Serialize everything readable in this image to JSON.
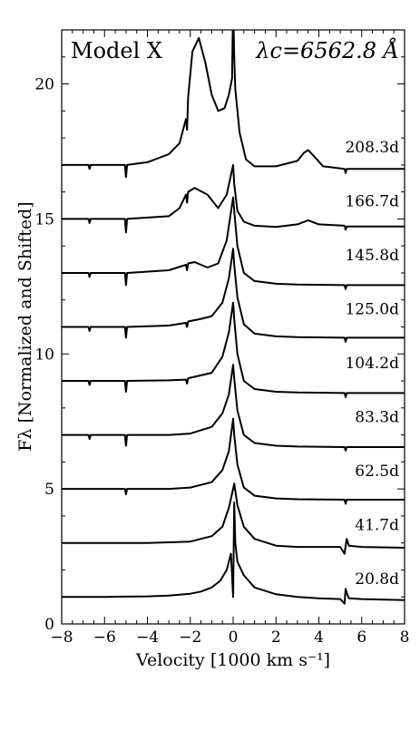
{
  "chart_data": {
    "type": "line",
    "title": "",
    "model_label": "Model X",
    "wavelength_label": "λc=6562.8 Å",
    "xlabel": "Velocity [1000 km s⁻¹]",
    "ylabel": "Fλ [Normalized and Shifted]",
    "xlim": [
      -8,
      8
    ],
    "ylim": [
      0,
      22
    ],
    "x_ticks": [
      -8,
      -6,
      -4,
      -2,
      0,
      2,
      4,
      6,
      8
    ],
    "x_tick_labels": [
      "−8",
      "−6",
      "−4",
      "−2",
      "0",
      "2",
      "4",
      "6",
      "8"
    ],
    "y_ticks": [
      0,
      5,
      10,
      15,
      20
    ],
    "y_tick_labels": [
      "0",
      "5",
      "10",
      "15",
      "20"
    ],
    "grid": false,
    "legend": "none",
    "line_color": "#000000",
    "series": [
      {
        "name": "20.8d",
        "offset": 1,
        "x": [
          -8,
          -6,
          -4,
          -3,
          -2,
          -1.5,
          -1,
          -0.6,
          -0.3,
          -0.1,
          0,
          0.05,
          0.1,
          0.2,
          0.5,
          1,
          2,
          3,
          4,
          5,
          5.2,
          5.25,
          5.3,
          5.4,
          6,
          8
        ],
        "y": [
          1,
          1,
          1.02,
          1.05,
          1.12,
          1.2,
          1.35,
          1.6,
          2.0,
          2.6,
          1.0,
          4.5,
          3.0,
          2.3,
          1.8,
          1.35,
          1.1,
          1.0,
          0.95,
          0.92,
          0.75,
          1.3,
          1.15,
          0.95,
          0.92,
          0.88
        ]
      },
      {
        "name": "41.7d",
        "offset": 3,
        "x": [
          -8,
          -6,
          -4,
          -2,
          -1,
          -0.5,
          -0.2,
          0,
          0.05,
          0.2,
          0.5,
          1,
          2,
          3,
          5,
          5.2,
          5.3,
          5.4,
          6,
          8
        ],
        "y": [
          3,
          3,
          3,
          3.05,
          3.25,
          3.6,
          4.3,
          5.0,
          5.2,
          4.4,
          3.6,
          3.15,
          2.9,
          2.85,
          2.85,
          2.6,
          3.15,
          2.9,
          2.85,
          2.82
        ]
      },
      {
        "name": "62.5d",
        "offset": 5,
        "x": [
          -8,
          -5.05,
          -5,
          -4.95,
          -3,
          -2,
          -1,
          -0.5,
          -0.2,
          0,
          0.05,
          0.2,
          0.5,
          1,
          2,
          3,
          5.2,
          5.25,
          5.3,
          6,
          8
        ],
        "y": [
          5,
          5,
          4.8,
          5,
          5,
          5.05,
          5.25,
          5.7,
          6.4,
          7.6,
          7.0,
          5.9,
          5.05,
          4.75,
          4.65,
          4.62,
          4.6,
          4.45,
          4.6,
          4.6,
          4.6
        ]
      },
      {
        "name": "83.3d",
        "offset": 7,
        "x": [
          -8,
          -6.75,
          -6.7,
          -6.65,
          -5.05,
          -5,
          -4.95,
          -3,
          -2,
          -1,
          -0.5,
          -0.2,
          0,
          0.05,
          0.2,
          0.5,
          1,
          2,
          3,
          5.2,
          5.25,
          5.3,
          6,
          8
        ],
        "y": [
          7,
          7,
          6.85,
          7,
          7,
          6.6,
          7,
          7,
          7.05,
          7.3,
          7.8,
          8.5,
          9.6,
          9.1,
          7.9,
          7.0,
          6.7,
          6.6,
          6.57,
          6.55,
          6.42,
          6.55,
          6.55,
          6.55
        ]
      },
      {
        "name": "104.2d",
        "offset": 9,
        "x": [
          -8,
          -6.75,
          -6.7,
          -6.65,
          -5.05,
          -5,
          -4.95,
          -3,
          -2.2,
          -2.15,
          -2.1,
          -1,
          -0.5,
          -0.2,
          0,
          0.05,
          0.2,
          0.5,
          1,
          2,
          3,
          5.2,
          5.25,
          5.3,
          6,
          8
        ],
        "y": [
          9,
          9,
          8.85,
          9,
          9,
          8.6,
          9,
          9.02,
          9.05,
          8.9,
          9.1,
          9.3,
          9.9,
          10.8,
          11.9,
          11.3,
          10.0,
          9.0,
          8.7,
          8.6,
          8.57,
          8.55,
          8.4,
          8.55,
          8.55,
          8.55
        ]
      },
      {
        "name": "125.0d",
        "offset": 11,
        "x": [
          -8,
          -6.75,
          -6.7,
          -6.65,
          -5.05,
          -5,
          -4.95,
          -3,
          -2.2,
          -2.15,
          -2.1,
          -1.5,
          -1,
          -0.5,
          -0.2,
          0,
          0.05,
          0.2,
          0.5,
          1,
          2,
          3,
          5.2,
          5.25,
          5.3,
          6,
          8
        ],
        "y": [
          11,
          11,
          10.85,
          11,
          11,
          10.6,
          11,
          11.05,
          11.15,
          11.0,
          11.2,
          11.3,
          11.4,
          11.9,
          12.8,
          13.9,
          13.3,
          12.1,
          11.1,
          10.75,
          10.65,
          10.62,
          10.6,
          10.45,
          10.6,
          10.6,
          10.6
        ]
      },
      {
        "name": "145.8d",
        "offset": 13,
        "x": [
          -8,
          -6.75,
          -6.7,
          -6.65,
          -5.05,
          -5,
          -4.95,
          -3,
          -2.2,
          -2.15,
          -2.1,
          -1.8,
          -1.2,
          -0.7,
          -0.3,
          0,
          0.05,
          0.2,
          0.5,
          1,
          2,
          3,
          5.2,
          5.25,
          5.3,
          6,
          8
        ],
        "y": [
          13,
          13,
          12.85,
          13,
          13,
          12.55,
          13,
          13.1,
          13.3,
          13.1,
          13.35,
          13.4,
          13.2,
          13.35,
          14.2,
          15.8,
          15.3,
          14.0,
          13.0,
          12.7,
          12.6,
          12.57,
          12.55,
          12.4,
          12.55,
          12.55,
          12.55
        ]
      },
      {
        "name": "166.7d",
        "offset": 15,
        "x": [
          -8,
          -6.75,
          -6.7,
          -6.65,
          -5.05,
          -5,
          -4.95,
          -3,
          -2.5,
          -2.2,
          -2.15,
          -2.1,
          -1.8,
          -1.2,
          -0.7,
          -0.3,
          0,
          0.05,
          0.2,
          0.5,
          1,
          2,
          3,
          3.5,
          4,
          5.2,
          5.25,
          5.3,
          6,
          8
        ],
        "y": [
          15,
          15,
          14.85,
          15,
          15,
          14.5,
          15,
          15.1,
          15.4,
          15.9,
          15.6,
          16.0,
          16.15,
          15.9,
          15.4,
          15.9,
          17.0,
          16.3,
          15.3,
          14.9,
          14.75,
          14.7,
          14.8,
          14.95,
          14.8,
          14.75,
          14.6,
          14.72,
          14.72,
          14.72
        ]
      },
      {
        "name": "208.3d",
        "offset": 17,
        "x": [
          -8,
          -6.75,
          -6.7,
          -6.65,
          -5.05,
          -5,
          -4.95,
          -4,
          -3,
          -2.5,
          -2.2,
          -2.15,
          -2.1,
          -1.9,
          -1.6,
          -1.3,
          -1.0,
          -0.7,
          -0.4,
          -0.2,
          -0.05,
          0,
          0.05,
          0.1,
          0.3,
          0.6,
          1,
          2,
          3,
          3.3,
          3.5,
          3.8,
          4.2,
          5.2,
          5.25,
          5.3,
          6,
          8
        ],
        "y": [
          17,
          17,
          16.85,
          17,
          17,
          16.55,
          17,
          17.1,
          17.4,
          17.8,
          18.7,
          18.3,
          19.5,
          21.2,
          21.7,
          20.8,
          19.6,
          19.0,
          19.1,
          19.6,
          20.2,
          23.0,
          21.0,
          19.8,
          18.2,
          17.2,
          16.95,
          16.95,
          17.15,
          17.45,
          17.55,
          17.3,
          16.95,
          16.85,
          16.7,
          16.85,
          16.85,
          16.85
        ]
      }
    ]
  }
}
